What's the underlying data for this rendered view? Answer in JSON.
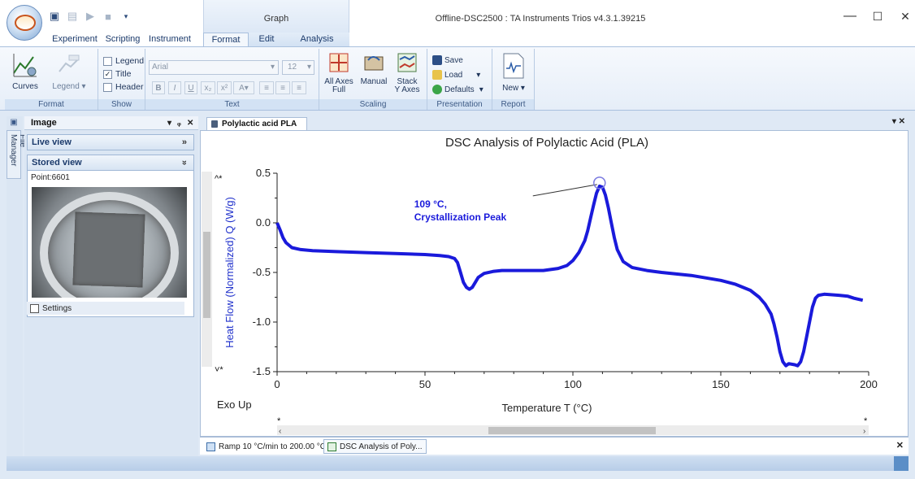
{
  "titlebar": {
    "context_tab": "Graph",
    "window_title": "Offline-DSC2500 : TA Instruments Trios v4.3.1.39215",
    "minimize": "—",
    "maximize": "☐",
    "close": "✕"
  },
  "tabs": [
    "Experiment",
    "Scripting",
    "Instrument",
    "Format",
    "Edit",
    "Analysis"
  ],
  "ribbon": {
    "format_group": {
      "label": "Format",
      "curves": "Curves",
      "legend": "Legend ▾"
    },
    "show_group": {
      "label": "Show",
      "legend": "Legend",
      "title": "Title",
      "header": "Header",
      "legend_checked": false,
      "title_checked": true,
      "header_checked": false
    },
    "text_group": {
      "label": "Text",
      "font": "Arial",
      "size": "12"
    },
    "scaling_group": {
      "label": "Scaling",
      "all_axes_full_1": "All Axes",
      "all_axes_full_2": "Full",
      "manual": "Manual",
      "stack_1": "Stack",
      "stack_2": "Y Axes"
    },
    "presentation_group": {
      "label": "Presentation",
      "save": "Save",
      "load": "Load",
      "defaults": "Defaults"
    },
    "report_group": {
      "label": "Report",
      "new": "New ▾"
    }
  },
  "left_panel": {
    "title": "Image",
    "live_view": "Live view",
    "stored_view": "Stored view",
    "point": "Point:6601",
    "settings": "Settings",
    "file_manager": "File Manager"
  },
  "document": {
    "tab_label": "Polylactic acid PLA",
    "bottom_tabs": [
      "Ramp 10 °C/min to 200.00 °C",
      "DSC Analysis of Poly..."
    ]
  },
  "chart_data": {
    "type": "line",
    "title": "DSC Analysis of Polylactic Acid (PLA)",
    "xlabel": "Temperature  T (°C)",
    "ylabel": "Heat Flow (Normalized)  Q  (W/g)",
    "corner_label": "Exo Up",
    "xlim": [
      0,
      200
    ],
    "ylim": [
      -1.5,
      0.5
    ],
    "x_ticks": [
      "0",
      "50",
      "100",
      "150",
      "200"
    ],
    "y_ticks": [
      "0.5",
      "0.0",
      "-0.5",
      "-1.0",
      "-1.5"
    ],
    "annotation": {
      "line1": "109 °C,",
      "line2": "Crystallization Peak",
      "x": 109,
      "y": 0.37
    },
    "series_color": "#1a1adb",
    "series": [
      {
        "x": [
          0,
          1,
          2,
          3,
          5,
          8,
          12,
          20,
          30,
          40,
          50,
          55,
          58,
          60,
          61,
          62,
          63,
          64,
          65,
          66,
          67,
          68,
          70,
          73,
          76,
          80,
          90,
          95,
          98,
          100,
          102,
          104,
          105,
          106,
          107,
          108,
          109,
          110,
          111,
          112,
          113,
          114,
          115,
          117,
          120,
          125,
          130,
          140,
          150,
          155,
          160,
          163,
          165,
          167,
          168,
          169,
          170,
          171,
          172,
          173,
          175,
          176,
          177,
          178,
          179,
          180,
          181,
          182,
          183,
          185,
          190,
          193,
          195,
          198
        ],
        "y": [
          0.0,
          -0.07,
          -0.15,
          -0.2,
          -0.25,
          -0.27,
          -0.28,
          -0.29,
          -0.3,
          -0.31,
          -0.32,
          -0.33,
          -0.34,
          -0.36,
          -0.4,
          -0.5,
          -0.6,
          -0.65,
          -0.67,
          -0.65,
          -0.6,
          -0.55,
          -0.51,
          -0.49,
          -0.48,
          -0.48,
          -0.48,
          -0.46,
          -0.43,
          -0.38,
          -0.3,
          -0.18,
          -0.08,
          0.05,
          0.18,
          0.3,
          0.37,
          0.36,
          0.28,
          0.15,
          0.0,
          -0.15,
          -0.27,
          -0.39,
          -0.45,
          -0.48,
          -0.5,
          -0.53,
          -0.58,
          -0.62,
          -0.68,
          -0.75,
          -0.82,
          -0.92,
          -1.02,
          -1.15,
          -1.3,
          -1.4,
          -1.44,
          -1.42,
          -1.43,
          -1.44,
          -1.4,
          -1.3,
          -1.15,
          -1.0,
          -0.85,
          -0.76,
          -0.73,
          -0.72,
          -0.73,
          -0.74,
          -0.76,
          -0.78
        ]
      }
    ]
  }
}
